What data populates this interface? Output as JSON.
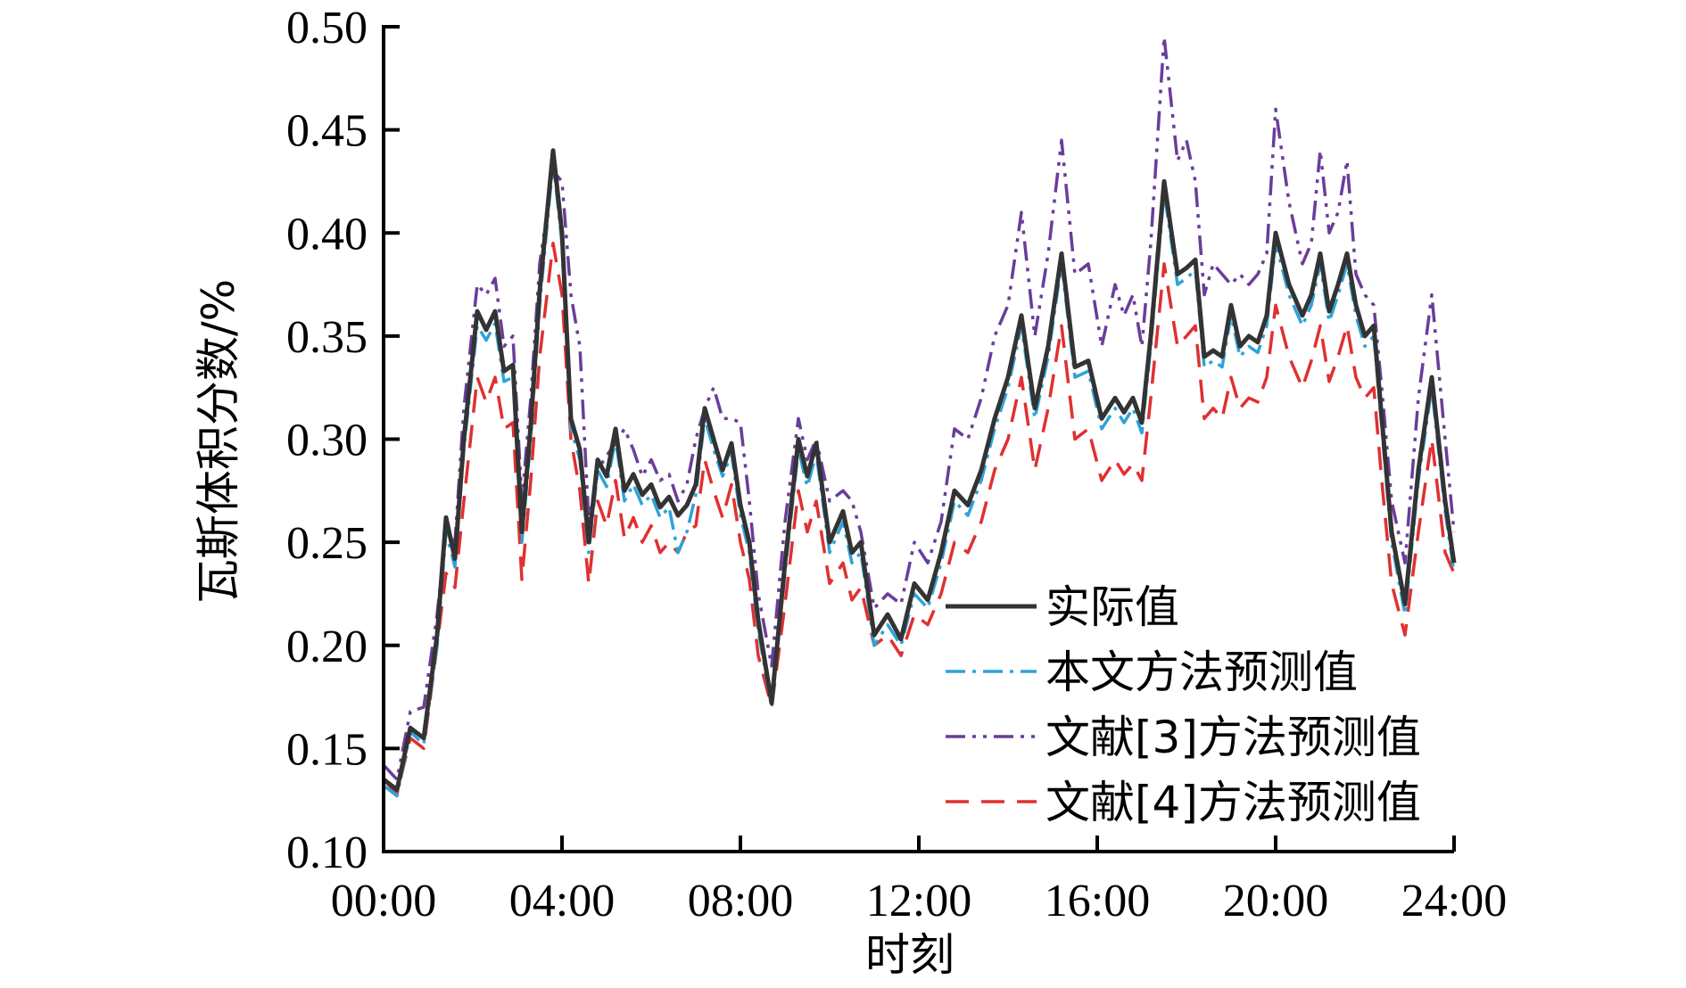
{
  "chart_data": {
    "type": "line",
    "title": "",
    "xlabel": "时刻",
    "ylabel": "瓦斯体积分数/%",
    "xlim": [
      0,
      24
    ],
    "ylim": [
      0.1,
      0.5
    ],
    "xticks": [
      0,
      4,
      8,
      12,
      16,
      20,
      24
    ],
    "xtick_labels": [
      "00:00",
      "04:00",
      "08:00",
      "12:00",
      "16:00",
      "20:00",
      "24:00"
    ],
    "yticks": [
      0.1,
      0.15,
      0.2,
      0.25,
      0.3,
      0.35,
      0.4,
      0.45,
      0.5
    ],
    "ytick_labels": [
      "0.10",
      "0.15",
      "0.20",
      "0.25",
      "0.30",
      "0.35",
      "0.40",
      "0.45",
      "0.50"
    ],
    "grid": false,
    "legend_position": "bottom-right",
    "x": [
      0,
      0.3,
      0.6,
      0.9,
      1.2,
      1.4,
      1.6,
      1.8,
      2.1,
      2.3,
      2.5,
      2.7,
      2.9,
      3.1,
      3.3,
      3.5,
      3.8,
      4.0,
      4.2,
      4.4,
      4.6,
      4.8,
      5.0,
      5.2,
      5.4,
      5.6,
      5.8,
      6.0,
      6.2,
      6.4,
      6.6,
      6.8,
      7.0,
      7.2,
      7.4,
      7.6,
      7.8,
      8.0,
      8.2,
      8.4,
      8.7,
      9.0,
      9.3,
      9.5,
      9.7,
      10.0,
      10.3,
      10.5,
      10.7,
      11.0,
      11.3,
      11.6,
      11.9,
      12.2,
      12.5,
      12.8,
      13.1,
      13.4,
      13.7,
      14.0,
      14.3,
      14.6,
      14.9,
      15.2,
      15.5,
      15.8,
      16.1,
      16.4,
      16.6,
      16.8,
      17.0,
      17.2,
      17.5,
      17.8,
      18.0,
      18.2,
      18.4,
      18.6,
      18.8,
      19.0,
      19.2,
      19.4,
      19.6,
      19.8,
      20.0,
      20.3,
      20.6,
      20.8,
      21.0,
      21.2,
      21.4,
      21.6,
      21.8,
      22.0,
      22.2,
      22.4,
      22.6,
      22.9,
      23.2,
      23.5,
      23.8,
      24.0
    ],
    "series": [
      {
        "name": "实际值",
        "color": "#333333",
        "dash": "solid",
        "values": [
          0.135,
          0.13,
          0.16,
          0.155,
          0.205,
          0.262,
          0.242,
          0.3,
          0.362,
          0.353,
          0.362,
          0.333,
          0.336,
          0.255,
          0.307,
          0.372,
          0.44,
          0.4,
          0.31,
          0.295,
          0.25,
          0.29,
          0.282,
          0.305,
          0.275,
          0.283,
          0.273,
          0.278,
          0.267,
          0.272,
          0.263,
          0.268,
          0.278,
          0.315,
          0.3,
          0.285,
          0.298,
          0.268,
          0.25,
          0.212,
          0.172,
          0.24,
          0.3,
          0.282,
          0.298,
          0.25,
          0.265,
          0.245,
          0.25,
          0.205,
          0.215,
          0.203,
          0.23,
          0.222,
          0.245,
          0.275,
          0.268,
          0.285,
          0.31,
          0.33,
          0.36,
          0.315,
          0.345,
          0.39,
          0.335,
          0.338,
          0.31,
          0.32,
          0.313,
          0.32,
          0.308,
          0.35,
          0.425,
          0.38,
          0.383,
          0.387,
          0.34,
          0.343,
          0.34,
          0.365,
          0.345,
          0.35,
          0.347,
          0.36,
          0.4,
          0.375,
          0.36,
          0.37,
          0.39,
          0.362,
          0.375,
          0.39,
          0.365,
          0.35,
          0.355,
          0.305,
          0.255,
          0.22,
          0.285,
          0.33,
          0.27,
          0.24
        ]
      },
      {
        "name": "本文方法预测值",
        "color": "#2ea3d9",
        "dash": "dashdot",
        "values": [
          0.132,
          0.127,
          0.158,
          0.152,
          0.2,
          0.255,
          0.238,
          0.295,
          0.355,
          0.348,
          0.356,
          0.328,
          0.33,
          0.25,
          0.3,
          0.365,
          0.435,
          0.395,
          0.305,
          0.29,
          0.245,
          0.285,
          0.277,
          0.3,
          0.27,
          0.278,
          0.268,
          0.273,
          0.262,
          0.267,
          0.245,
          0.255,
          0.273,
          0.31,
          0.295,
          0.282,
          0.293,
          0.263,
          0.245,
          0.207,
          0.17,
          0.235,
          0.295,
          0.277,
          0.293,
          0.245,
          0.26,
          0.24,
          0.245,
          0.2,
          0.21,
          0.2,
          0.225,
          0.218,
          0.24,
          0.27,
          0.263,
          0.28,
          0.305,
          0.325,
          0.355,
          0.31,
          0.34,
          0.385,
          0.33,
          0.333,
          0.305,
          0.315,
          0.308,
          0.315,
          0.303,
          0.345,
          0.42,
          0.375,
          0.378,
          0.382,
          0.335,
          0.338,
          0.335,
          0.36,
          0.34,
          0.345,
          0.342,
          0.355,
          0.395,
          0.37,
          0.355,
          0.365,
          0.385,
          0.357,
          0.37,
          0.385,
          0.36,
          0.345,
          0.35,
          0.3,
          0.25,
          0.215,
          0.28,
          0.325,
          0.265,
          0.235
        ]
      },
      {
        "name": "文献[3]方法预测值",
        "color": "#6a3d9a",
        "dash": "dashdotdot",
        "values": [
          0.142,
          0.135,
          0.168,
          0.17,
          0.215,
          0.255,
          0.25,
          0.315,
          0.375,
          0.37,
          0.378,
          0.345,
          0.35,
          0.27,
          0.32,
          0.385,
          0.43,
          0.425,
          0.37,
          0.345,
          0.26,
          0.285,
          0.292,
          0.298,
          0.305,
          0.295,
          0.282,
          0.29,
          0.28,
          0.283,
          0.27,
          0.278,
          0.3,
          0.315,
          0.325,
          0.31,
          0.31,
          0.308,
          0.27,
          0.225,
          0.19,
          0.26,
          0.31,
          0.29,
          0.3,
          0.27,
          0.275,
          0.27,
          0.255,
          0.218,
          0.225,
          0.22,
          0.25,
          0.24,
          0.26,
          0.305,
          0.3,
          0.32,
          0.35,
          0.365,
          0.41,
          0.35,
          0.39,
          0.445,
          0.38,
          0.385,
          0.345,
          0.375,
          0.36,
          0.37,
          0.345,
          0.395,
          0.495,
          0.435,
          0.445,
          0.425,
          0.37,
          0.385,
          0.38,
          0.375,
          0.38,
          0.375,
          0.38,
          0.39,
          0.46,
          0.415,
          0.385,
          0.395,
          0.44,
          0.4,
          0.41,
          0.435,
          0.38,
          0.37,
          0.365,
          0.32,
          0.27,
          0.24,
          0.32,
          0.37,
          0.3,
          0.255
        ]
      },
      {
        "name": "文献[4]方法预测值",
        "color": "#e03030",
        "dash": "dashed",
        "values": [
          0.135,
          0.128,
          0.155,
          0.15,
          0.2,
          0.235,
          0.228,
          0.27,
          0.33,
          0.318,
          0.33,
          0.305,
          0.308,
          0.232,
          0.28,
          0.34,
          0.395,
          0.37,
          0.3,
          0.275,
          0.23,
          0.27,
          0.258,
          0.28,
          0.252,
          0.262,
          0.25,
          0.258,
          0.245,
          0.25,
          0.245,
          0.255,
          0.258,
          0.29,
          0.275,
          0.262,
          0.278,
          0.25,
          0.232,
          0.195,
          0.17,
          0.22,
          0.275,
          0.255,
          0.27,
          0.23,
          0.24,
          0.222,
          0.228,
          0.2,
          0.205,
          0.195,
          0.215,
          0.21,
          0.225,
          0.25,
          0.245,
          0.26,
          0.285,
          0.3,
          0.33,
          0.285,
          0.315,
          0.355,
          0.3,
          0.305,
          0.28,
          0.29,
          0.283,
          0.288,
          0.28,
          0.32,
          0.385,
          0.345,
          0.35,
          0.355,
          0.31,
          0.315,
          0.31,
          0.33,
          0.315,
          0.32,
          0.318,
          0.33,
          0.365,
          0.34,
          0.325,
          0.338,
          0.355,
          0.328,
          0.34,
          0.355,
          0.33,
          0.32,
          0.325,
          0.275,
          0.23,
          0.205,
          0.255,
          0.3,
          0.245,
          0.235
        ]
      }
    ]
  }
}
